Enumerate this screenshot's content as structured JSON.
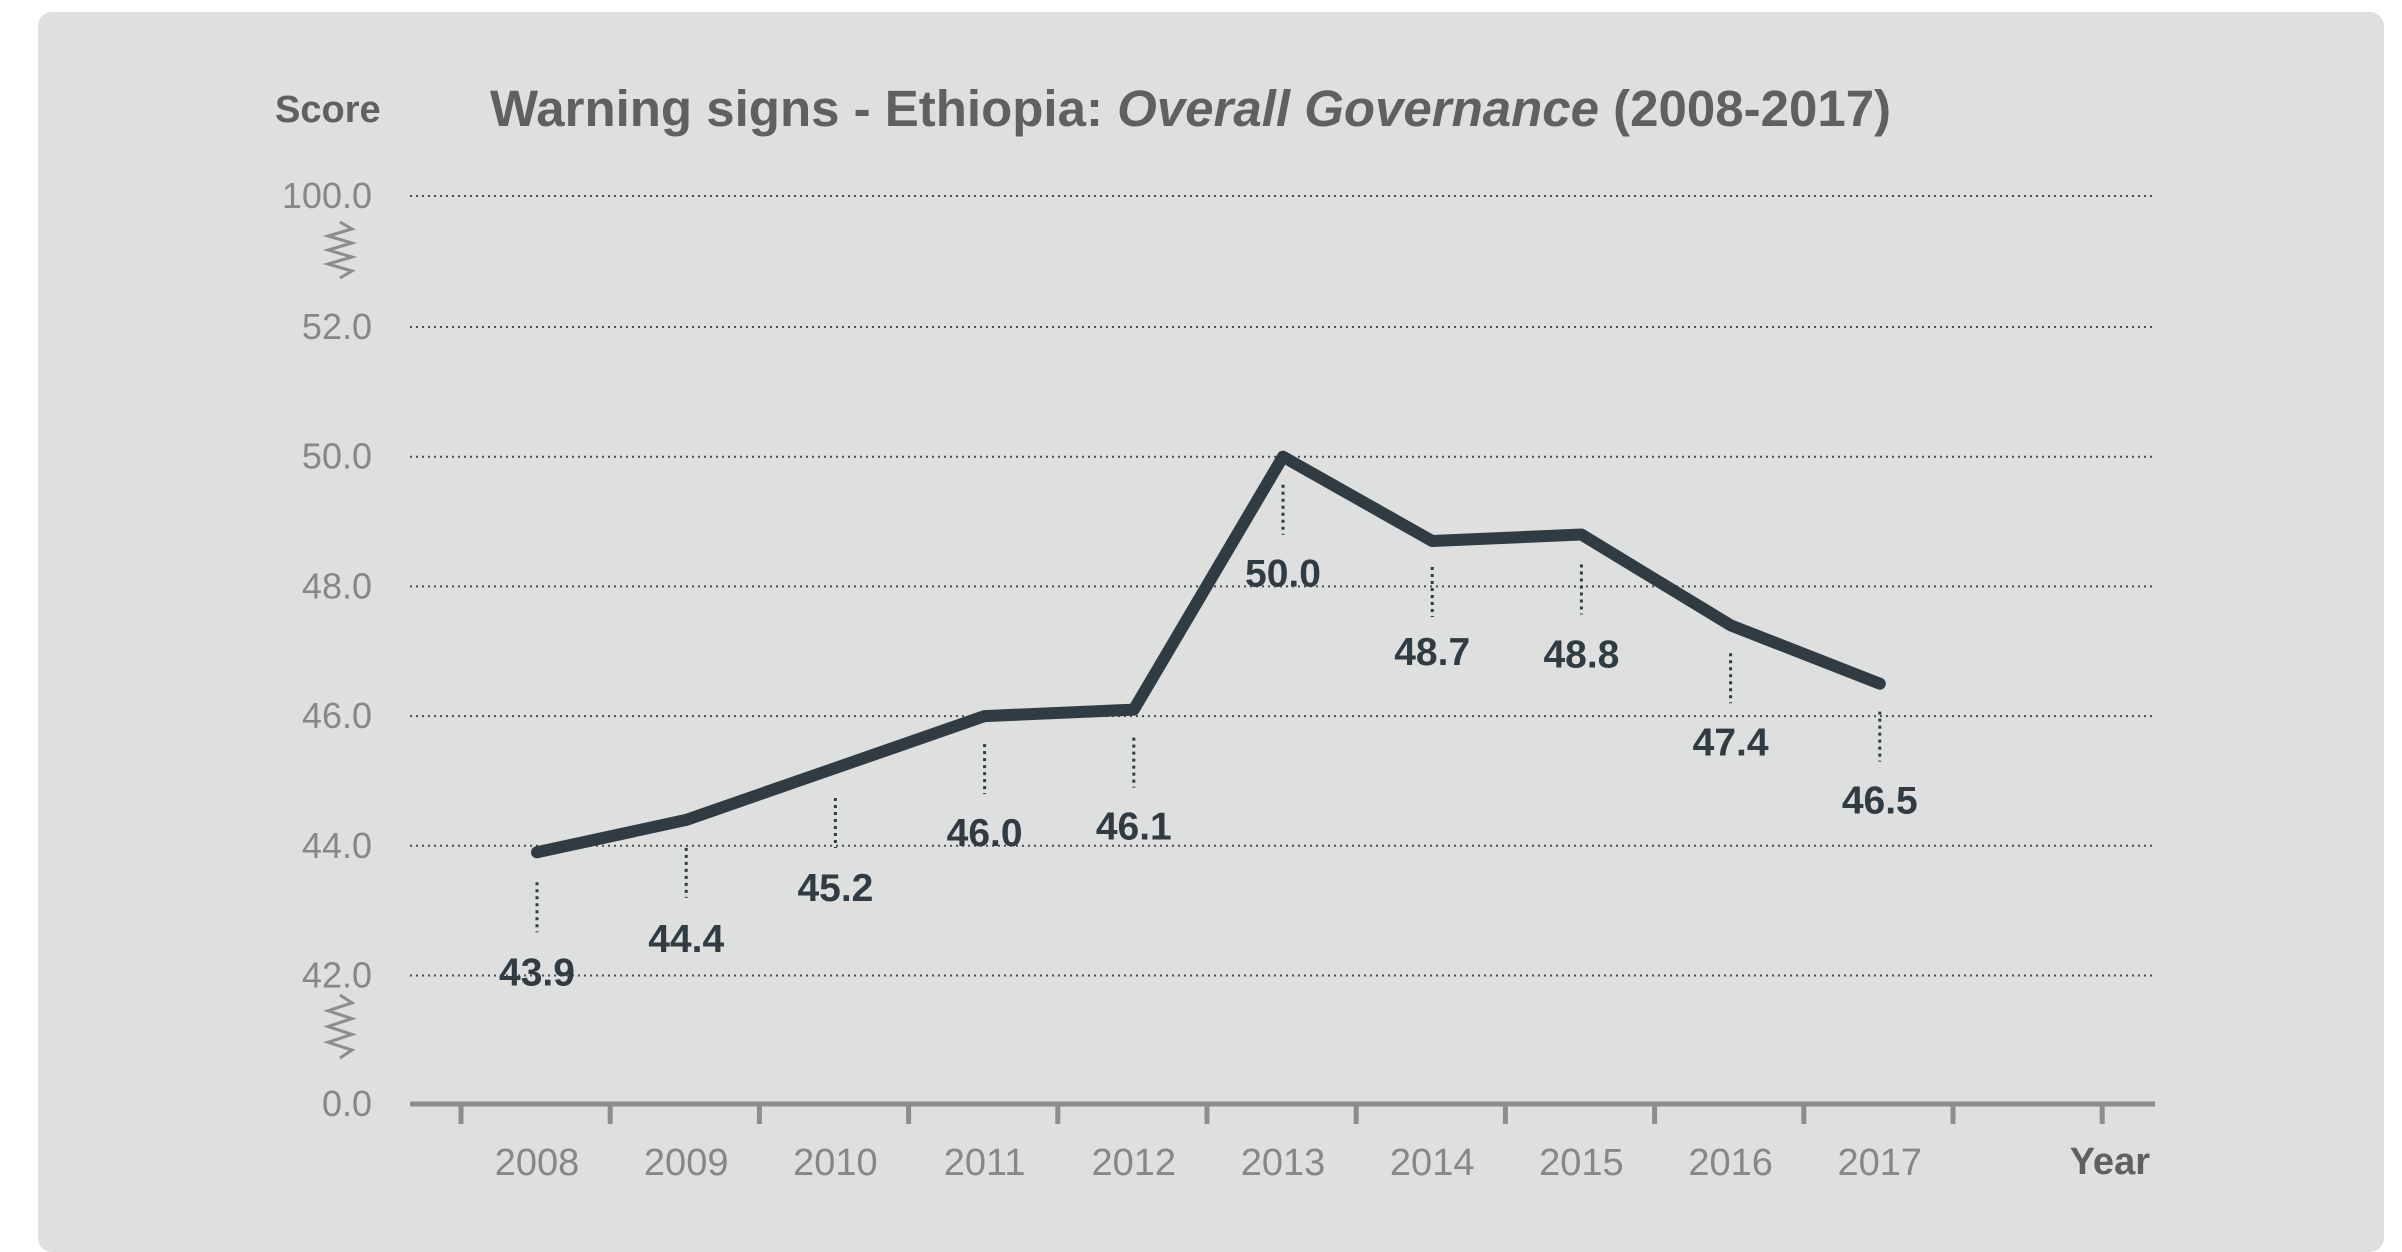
{
  "chart_data": {
    "type": "line",
    "title": "Warning signs - Ethiopia: ",
    "title_italic": "Overall Governance",
    "title_suffix": " (2008-2017)",
    "ylabel": "Score",
    "xlabel": "Year",
    "categories": [
      "2008",
      "2009",
      "2010",
      "2011",
      "2012",
      "2013",
      "2014",
      "2015",
      "2016",
      "2017"
    ],
    "values": [
      43.9,
      44.4,
      45.2,
      46.0,
      46.1,
      50.0,
      48.7,
      48.8,
      47.4,
      46.5
    ],
    "data_labels": [
      "43.9",
      "44.4",
      "45.2",
      "46.0",
      "46.1",
      "50.0",
      "48.7",
      "48.8",
      "47.4",
      "46.5"
    ],
    "y_ticks": [
      "0.0",
      "42.0",
      "44.0",
      "46.0",
      "48.0",
      "50.0",
      "52.0",
      "100.0"
    ],
    "y_range_visible": [
      42.0,
      52.0
    ],
    "y_axis_breaks": [
      "0.0-42.0",
      "52.0-100.0"
    ],
    "grid": "horizontal dotted",
    "colors": {
      "line": "#303b42",
      "panel": "#dedfdf",
      "grid": "#4a4c4e",
      "axis": "#8b8d90",
      "tick_text": "#85878a",
      "title_text": "#5f6061"
    }
  }
}
